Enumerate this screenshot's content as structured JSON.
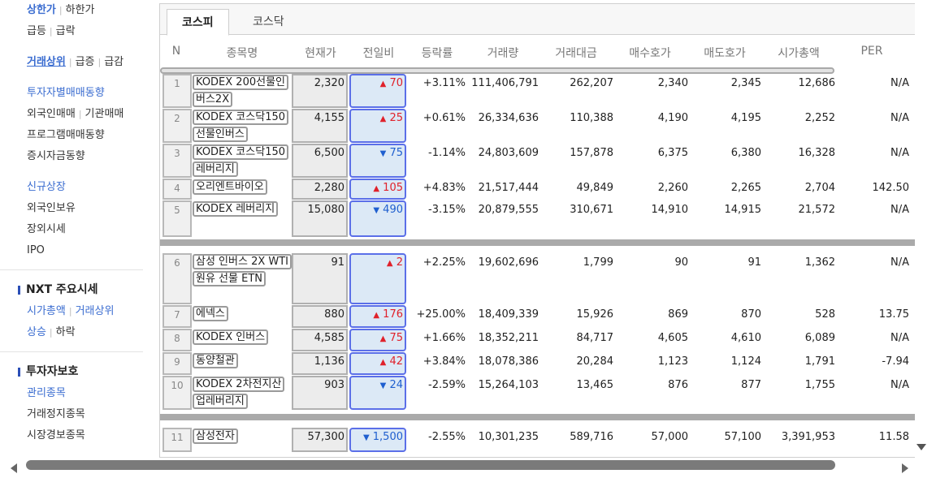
{
  "sidebar": {
    "group1": [
      {
        "a": "상한가",
        "b": "하한가"
      },
      {
        "a": "급등",
        "b": "급락"
      }
    ],
    "group2": [
      {
        "a": "거래상위",
        "b": "급증",
        "c": "급감"
      }
    ],
    "group3": [
      "투자자별매매동향",
      "외국인매매",
      "기관매매",
      "프로그램매매동향",
      "증시자금동향"
    ],
    "group4": [
      "신규상장",
      "외국인보유",
      "장외시세",
      "IPO"
    ],
    "nxt_title": "NXT 주요시세",
    "nxt_links": {
      "a": "시가총액",
      "b": "거래상위",
      "c": "상승",
      "d": "하락"
    },
    "protect_title": "투자자보호",
    "protect_items": [
      "관리종목",
      "거래정지종목",
      "시장경보종목"
    ]
  },
  "tabs": {
    "kospi": "코스피",
    "kosdaq": "코스닥"
  },
  "columns": {
    "n": "N",
    "name": "종목명",
    "price": "현재가",
    "change": "전일비",
    "rate": "등락률",
    "volume": "거래량",
    "amount": "거래대금",
    "bid": "매수호가",
    "ask": "매도호가",
    "cap": "시가총액",
    "per": "PER"
  },
  "rows": [
    {
      "n": "1",
      "name": "KODEX 200선물인버스2X",
      "price": "2,320",
      "dir": "up",
      "change": "70",
      "rate": "+3.11%",
      "volume": "111,406,791",
      "amount": "262,207",
      "bid": "2,340",
      "ask": "2,345",
      "cap": "12,686",
      "per": "N/A"
    },
    {
      "n": "2",
      "name": "KODEX 코스닥150선물인버스",
      "price": "4,155",
      "dir": "up",
      "change": "25",
      "rate": "+0.61%",
      "volume": "26,334,636",
      "amount": "110,388",
      "bid": "4,190",
      "ask": "4,195",
      "cap": "2,252",
      "per": "N/A"
    },
    {
      "n": "3",
      "name": "KODEX 코스닥150레버리지",
      "price": "6,500",
      "dir": "down",
      "change": "75",
      "rate": "-1.14%",
      "volume": "24,803,609",
      "amount": "157,878",
      "bid": "6,375",
      "ask": "6,380",
      "cap": "16,328",
      "per": "N/A"
    },
    {
      "n": "4",
      "name": "오리엔트바이오",
      "price": "2,280",
      "dir": "up",
      "change": "105",
      "rate": "+4.83%",
      "volume": "21,517,444",
      "amount": "49,849",
      "bid": "2,260",
      "ask": "2,265",
      "cap": "2,704",
      "per": "142.50"
    },
    {
      "n": "5",
      "name": "KODEX 레버리지",
      "price": "15,080",
      "dir": "down",
      "change": "490",
      "rate": "-3.15%",
      "volume": "20,879,555",
      "amount": "310,671",
      "bid": "14,910",
      "ask": "14,915",
      "cap": "21,572",
      "per": "N/A"
    },
    {
      "n": "6",
      "name": "삼성 인버스 2X WTI원유 선물 ETN",
      "price": "91",
      "dir": "up",
      "change": "2",
      "rate": "+2.25%",
      "volume": "19,602,696",
      "amount": "1,799",
      "bid": "90",
      "ask": "91",
      "cap": "1,362",
      "per": "N/A"
    },
    {
      "n": "7",
      "name": "에넥스",
      "price": "880",
      "dir": "up",
      "change": "176",
      "rate": "+25.00%",
      "volume": "18,409,339",
      "amount": "15,926",
      "bid": "869",
      "ask": "870",
      "cap": "528",
      "per": "13.75"
    },
    {
      "n": "8",
      "name": "KODEX 인버스",
      "price": "4,585",
      "dir": "up",
      "change": "75",
      "rate": "+1.66%",
      "volume": "18,352,211",
      "amount": "84,717",
      "bid": "4,605",
      "ask": "4,610",
      "cap": "6,089",
      "per": "N/A"
    },
    {
      "n": "9",
      "name": "동양철관",
      "price": "1,136",
      "dir": "up",
      "change": "42",
      "rate": "+3.84%",
      "volume": "18,078,386",
      "amount": "20,284",
      "bid": "1,123",
      "ask": "1,124",
      "cap": "1,791",
      "per": "-7.94"
    },
    {
      "n": "10",
      "name": "KODEX 2차전지산업레버리지",
      "price": "903",
      "dir": "down",
      "change": "24",
      "rate": "-2.59%",
      "volume": "15,264,103",
      "amount": "13,465",
      "bid": "876",
      "ask": "877",
      "cap": "1,755",
      "per": "N/A"
    },
    {
      "n": "11",
      "name": "삼성전자",
      "price": "57,300",
      "dir": "down",
      "change": "1,500",
      "rate": "-2.55%",
      "volume": "10,301,235",
      "amount": "589,716",
      "bid": "57,000",
      "ask": "57,100",
      "cap": "3,391,953",
      "per": "11.58"
    }
  ],
  "colors": {
    "up": "#e0212b",
    "down": "#1f5fcf",
    "link": "#3a6cd0",
    "change_box": "#dce9f6"
  }
}
